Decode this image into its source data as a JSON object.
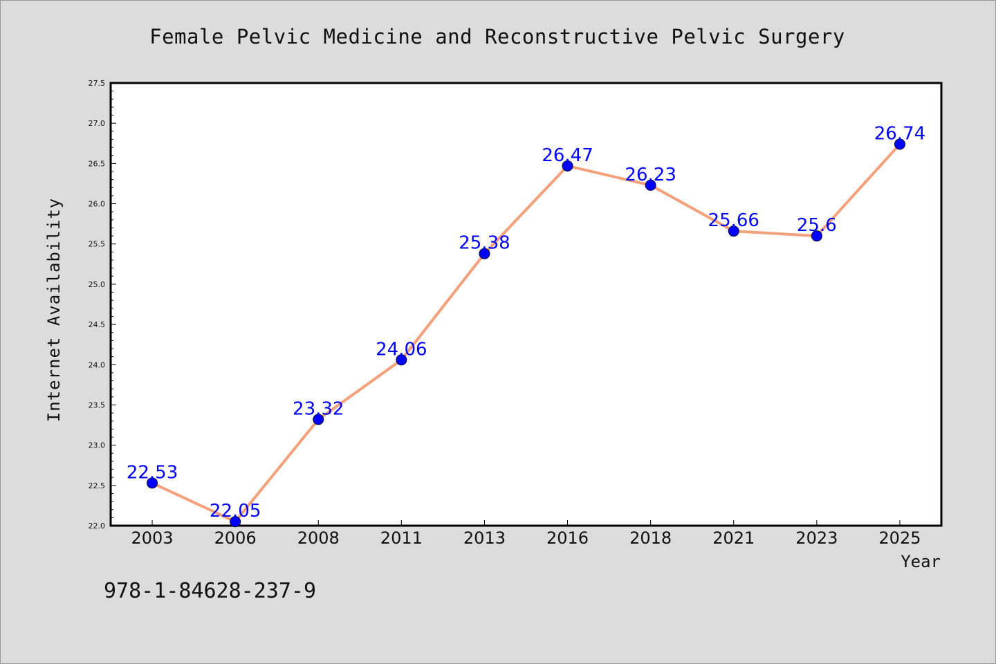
{
  "chart_data": {
    "type": "line",
    "title": "Female Pelvic Medicine and Reconstructive Pelvic Surgery",
    "xlabel": "Year",
    "ylabel": "Internet Availability",
    "categories": [
      "2003",
      "2006",
      "2008",
      "2011",
      "2013",
      "2016",
      "2018",
      "2021",
      "2023",
      "2025"
    ],
    "values": [
      22.53,
      22.05,
      23.32,
      24.06,
      25.38,
      26.47,
      26.23,
      25.66,
      25.6,
      26.74
    ],
    "data_labels": [
      "22.53",
      "22.05",
      "23.32",
      "24.06",
      "25.38",
      "26.47",
      "26.23",
      "25.66",
      "25.6",
      "26.74"
    ],
    "ylim": [
      22.0,
      27.5
    ],
    "yticks": [
      "22.0",
      "22.5",
      "23.0",
      "23.5",
      "24.0",
      "24.5",
      "25.0",
      "25.5",
      "26.0",
      "26.5",
      "27.0",
      "27.5"
    ],
    "grid": false,
    "line_color": "#f4a07a",
    "marker_color": "#0000ff",
    "label_color": "#0000ff",
    "background": "#dcdcdc",
    "plot_background": "#ffffff"
  },
  "footnote": "978-1-84628-237-9"
}
